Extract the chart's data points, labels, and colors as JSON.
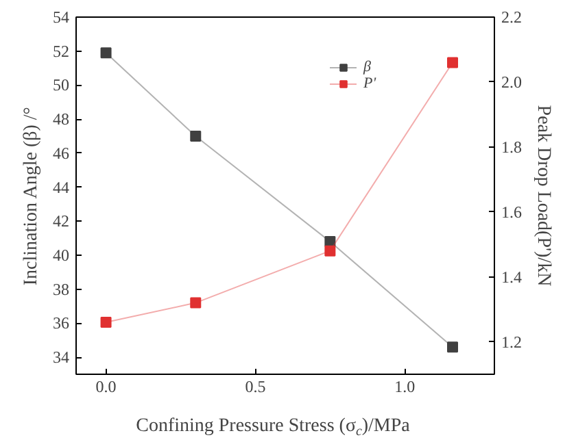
{
  "chart_data": {
    "type": "line",
    "xlabel": "Confining Pressure Stress (σ$_{c}$)/MPa",
    "ylabel": "Inclination Angle (β) /°",
    "y2label": "Peak Drop Load(P')/kN",
    "x": [
      0,
      0.3,
      0.75,
      1.16
    ],
    "series": [
      {
        "name": "β",
        "color": "#404040",
        "values": [
          51.9,
          47.0,
          40.8,
          34.6
        ]
      },
      {
        "name": "P'",
        "color": "#e03030",
        "axis": "y2",
        "values": [
          1.26,
          1.32,
          1.48,
          2.06
        ]
      }
    ],
    "xlim": [
      -0.1,
      1.3
    ],
    "xticks": [
      {
        "value": 0,
        "label": "0.0"
      },
      0.5,
      {
        "value": 1,
        "label": "1.0"
      }
    ],
    "ylim": [
      33,
      54
    ],
    "yticks": [
      34,
      36,
      38,
      40,
      42,
      44,
      46,
      48,
      50,
      52,
      54
    ],
    "y2lim": [
      1.1,
      2.2
    ],
    "y2ticks": [
      1.2,
      1.4,
      1.6,
      1.8,
      {
        "value": 2,
        "label": "2.0"
      },
      2.2
    ],
    "marker": "square",
    "line_style": "solid",
    "grid": false,
    "legend": "top right"
  }
}
